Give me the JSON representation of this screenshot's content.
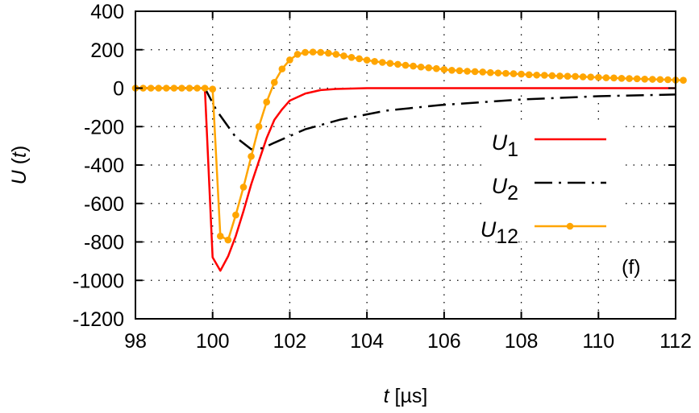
{
  "chart_data": {
    "type": "line",
    "panel_label": "(f)",
    "xlabel": {
      "var": "t",
      "unit": " [µs]"
    },
    "ylabel": {
      "var": "U",
      "rest": " (",
      "arg": "t",
      "close": ")"
    },
    "xlim": [
      98,
      112
    ],
    "ylim": [
      -1200,
      400
    ],
    "xticks": [
      98,
      100,
      102,
      104,
      106,
      108,
      110,
      112
    ],
    "yticks": [
      400,
      200,
      0,
      -200,
      -400,
      -600,
      -800,
      -1000,
      -1200
    ],
    "grid": true,
    "legend_position": "center-right",
    "colors": {
      "U1": "#ff0000",
      "U2": "#000000",
      "U12": "#ffa500"
    },
    "series": [
      {
        "name": "U",
        "sub": "1",
        "style": "solid",
        "color": "#ff0000",
        "x": [
          98,
          99.8,
          100,
          100.2,
          100.4,
          100.6,
          100.8,
          101,
          101.2,
          101.4,
          101.6,
          101.8,
          102,
          102.4,
          102.8,
          103.2,
          104,
          112
        ],
        "y": [
          0,
          0,
          -880,
          -950,
          -875,
          -770,
          -640,
          -500,
          -380,
          -260,
          -165,
          -110,
          -65,
          -28,
          -10,
          -4,
          0,
          0
        ]
      },
      {
        "name": "U",
        "sub": "2",
        "style": "dashdot",
        "color": "#000000",
        "x": [
          98,
          99.8,
          100.1,
          100.6,
          101,
          101.3,
          101.6,
          102.4,
          103.3,
          104.5,
          105.9,
          108,
          110,
          112
        ],
        "y": [
          0,
          0,
          -115,
          -255,
          -318,
          -312,
          -284,
          -214,
          -164,
          -117,
          -88,
          -59,
          -42,
          -33
        ]
      },
      {
        "name": "U",
        "sub": "12",
        "style": "solid-markers",
        "color": "#ffa500",
        "x_start": 98,
        "x_step": 0.2,
        "y": [
          0,
          0,
          0,
          0,
          0,
          0,
          0,
          0,
          0,
          0,
          -5,
          -770,
          -790,
          -660,
          -515,
          -355,
          -200,
          -72,
          30,
          100,
          147,
          176,
          186,
          188,
          186,
          182,
          176,
          168,
          160,
          153,
          146,
          139,
          134,
          129,
          124,
          119,
          115,
          110,
          106,
          102,
          97,
          93,
          91,
          88,
          86,
          84,
          81,
          79,
          77,
          75,
          73,
          70,
          68,
          67,
          65,
          63,
          62,
          61,
          59,
          58,
          56,
          54,
          53,
          51,
          50,
          49,
          47,
          46,
          45,
          44,
          42,
          41
        ]
      }
    ]
  }
}
